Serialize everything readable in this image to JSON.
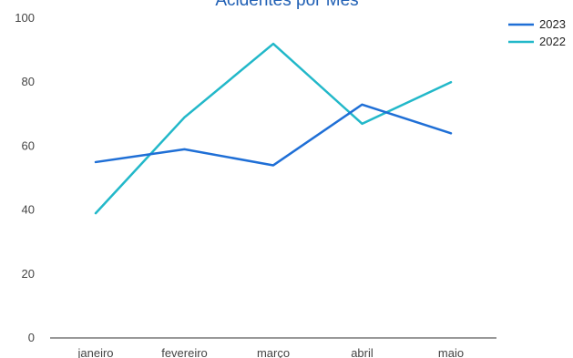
{
  "chart_data": {
    "type": "line",
    "title": "Acidentes por Mês",
    "categories": [
      "janeiro",
      "fevereiro",
      "março",
      "abril",
      "maio"
    ],
    "series": [
      {
        "name": "2023",
        "values": [
          55,
          59,
          54,
          73,
          64
        ],
        "color": "#1f6fd6"
      },
      {
        "name": "2022",
        "values": [
          39,
          69,
          92,
          67,
          80
        ],
        "color": "#22b8c9"
      }
    ],
    "ylim": [
      0,
      100
    ],
    "yticks": [
      0,
      20,
      40,
      60,
      80,
      100
    ],
    "grid": false,
    "legend": "top-right",
    "xlabel": "",
    "ylabel": ""
  }
}
